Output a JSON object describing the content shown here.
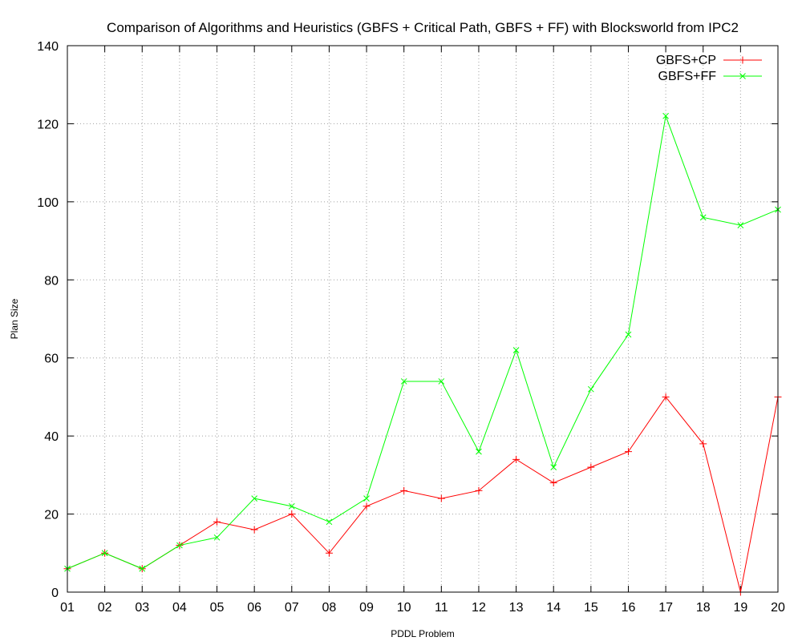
{
  "chart_data": {
    "type": "line",
    "title": "Comparison of Algorithms and Heuristics (GBFS + Critical Path, GBFS + FF) with Blocksworld from IPC2",
    "xlabel": "PDDL Problem",
    "ylabel": "Plan Size",
    "categories": [
      "01",
      "02",
      "03",
      "04",
      "05",
      "06",
      "07",
      "08",
      "09",
      "10",
      "11",
      "12",
      "13",
      "14",
      "15",
      "16",
      "17",
      "18",
      "19",
      "20"
    ],
    "ylim": [
      0,
      140
    ],
    "yticks": [
      0,
      20,
      40,
      60,
      80,
      100,
      120,
      140
    ],
    "grid": true,
    "legend_position": "top-right",
    "series": [
      {
        "name": "GBFS+CP",
        "color": "#ff0000",
        "marker": "plus",
        "values": [
          6,
          10,
          6,
          12,
          18,
          16,
          20,
          10,
          22,
          26,
          24,
          26,
          34,
          28,
          32,
          36,
          50,
          38,
          0,
          50
        ]
      },
      {
        "name": "GBFS+FF",
        "color": "#00ff00",
        "marker": "cross",
        "values": [
          6,
          10,
          6,
          12,
          14,
          24,
          22,
          18,
          24,
          54,
          54,
          36,
          62,
          32,
          52,
          66,
          122,
          96,
          94,
          98
        ]
      }
    ]
  }
}
